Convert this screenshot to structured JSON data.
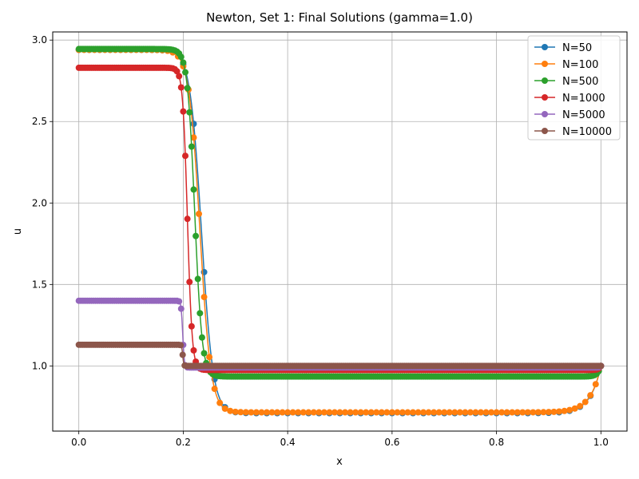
{
  "chart_data": {
    "type": "line",
    "title": "Newton, Set 1: Final Solutions (gamma=1.0)",
    "xlabel": "x",
    "ylabel": "u",
    "xlim": [
      -0.05,
      1.05
    ],
    "ylim": [
      0.6,
      3.05
    ],
    "xticks": [
      "0.0",
      "0.2",
      "0.4",
      "0.6",
      "0.8",
      "1.0"
    ],
    "yticks": [
      "1.0",
      "1.5",
      "2.0",
      "2.5",
      "3.0"
    ],
    "grid": true,
    "legend_position": "top-right",
    "series": [
      {
        "name": "N=50",
        "color": "#1f77b4",
        "profile": {
          "left": 2.94,
          "right": 0.71,
          "center": 0.235,
          "width": 0.022,
          "boundary": 1.0,
          "boundary_width": 0.02
        }
      },
      {
        "name": "N=100",
        "color": "#ff7f0e",
        "profile": {
          "left": 2.94,
          "right": 0.715,
          "center": 0.232,
          "width": 0.021,
          "boundary": 1.0,
          "boundary_width": 0.02
        }
      },
      {
        "name": "N=500",
        "color": "#2ca02c",
        "profile": {
          "left": 2.945,
          "right": 0.935,
          "center": 0.222,
          "width": 0.014,
          "boundary": 1.0,
          "boundary_width": 0.006
        }
      },
      {
        "name": "N=1000",
        "color": "#d62728",
        "profile": {
          "left": 2.83,
          "right": 0.975,
          "center": 0.208,
          "width": 0.009,
          "boundary": 1.0,
          "boundary_width": 0.004
        }
      },
      {
        "name": "N=5000",
        "color": "#9467bd",
        "profile": {
          "left": 1.4,
          "right": 0.99,
          "center": 0.199,
          "width": 0.003,
          "boundary": 1.0,
          "boundary_width": 0.002
        }
      },
      {
        "name": "N=10000",
        "color": "#8c564b",
        "profile": {
          "left": 1.13,
          "right": 1.0,
          "center": 0.199,
          "width": 0.002,
          "boundary": 1.0,
          "boundary_width": 0.002
        }
      }
    ]
  }
}
